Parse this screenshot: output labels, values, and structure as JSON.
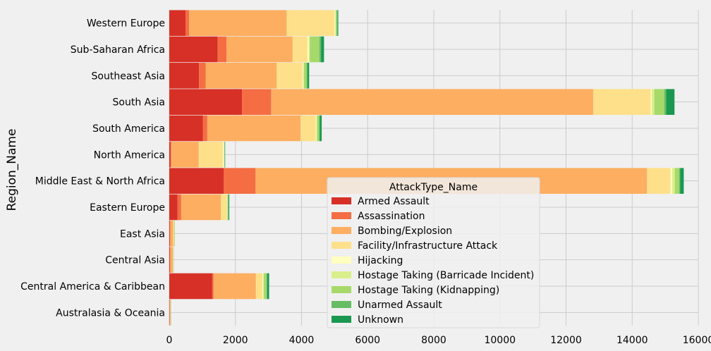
{
  "chart_data": {
    "type": "bar",
    "orientation": "horizontal",
    "stacked": true,
    "ylabel": "Region_Name",
    "xlabel": "",
    "xlim": [
      0,
      16000
    ],
    "xticks": [
      0,
      2000,
      4000,
      6000,
      8000,
      10000,
      12000,
      14000,
      16000
    ],
    "grid": true,
    "legend_title": "AttackType_Name",
    "legend_position": "center-right",
    "categories": [
      "Western Europe",
      "Sub-Saharan Africa",
      "Southeast Asia",
      "South Asia",
      "South America",
      "North America",
      "Middle East & North Africa",
      "Eastern Europe",
      "East Asia",
      "Central Asia",
      "Central America & Caribbean",
      "Australasia & Oceania"
    ],
    "series": [
      {
        "name": "Armed Assault",
        "color": "#d73027",
        "values": [
          490,
          1460,
          900,
          2200,
          1020,
          40,
          1650,
          250,
          20,
          20,
          1300,
          10
        ]
      },
      {
        "name": "Assassination",
        "color": "#f46d43",
        "values": [
          110,
          270,
          200,
          880,
          130,
          20,
          960,
          110,
          10,
          10,
          40,
          5
        ]
      },
      {
        "name": "Bombing/Explosion",
        "color": "#fdae61",
        "values": [
          2950,
          2000,
          2150,
          9740,
          2820,
          830,
          11840,
          1200,
          90,
          80,
          1280,
          20
        ]
      },
      {
        "name": "Facility/Infrastructure Attack",
        "color": "#fee08b",
        "values": [
          1450,
          450,
          780,
          1740,
          460,
          730,
          710,
          180,
          30,
          10,
          200,
          10
        ]
      },
      {
        "name": "Hijacking",
        "color": "#ffffbf",
        "values": [
          20,
          40,
          20,
          30,
          20,
          30,
          50,
          5,
          5,
          2,
          20,
          2
        ]
      },
      {
        "name": "Hostage Taking (Barricade Incident)",
        "color": "#d9ef8b",
        "values": [
          20,
          30,
          20,
          80,
          20,
          10,
          80,
          20,
          3,
          2,
          20,
          2
        ]
      },
      {
        "name": "Hostage Taking (Kidnapping)",
        "color": "#a6d96a",
        "values": [
          20,
          290,
          80,
          300,
          60,
          10,
          130,
          10,
          5,
          3,
          80,
          3
        ]
      },
      {
        "name": "Unarmed Assault",
        "color": "#66bd63",
        "values": [
          30,
          50,
          30,
          60,
          20,
          10,
          30,
          20,
          3,
          2,
          20,
          2
        ]
      },
      {
        "name": "Unknown",
        "color": "#1a9850",
        "values": [
          20,
          90,
          50,
          250,
          60,
          10,
          110,
          20,
          3,
          2,
          60,
          2
        ]
      }
    ]
  }
}
